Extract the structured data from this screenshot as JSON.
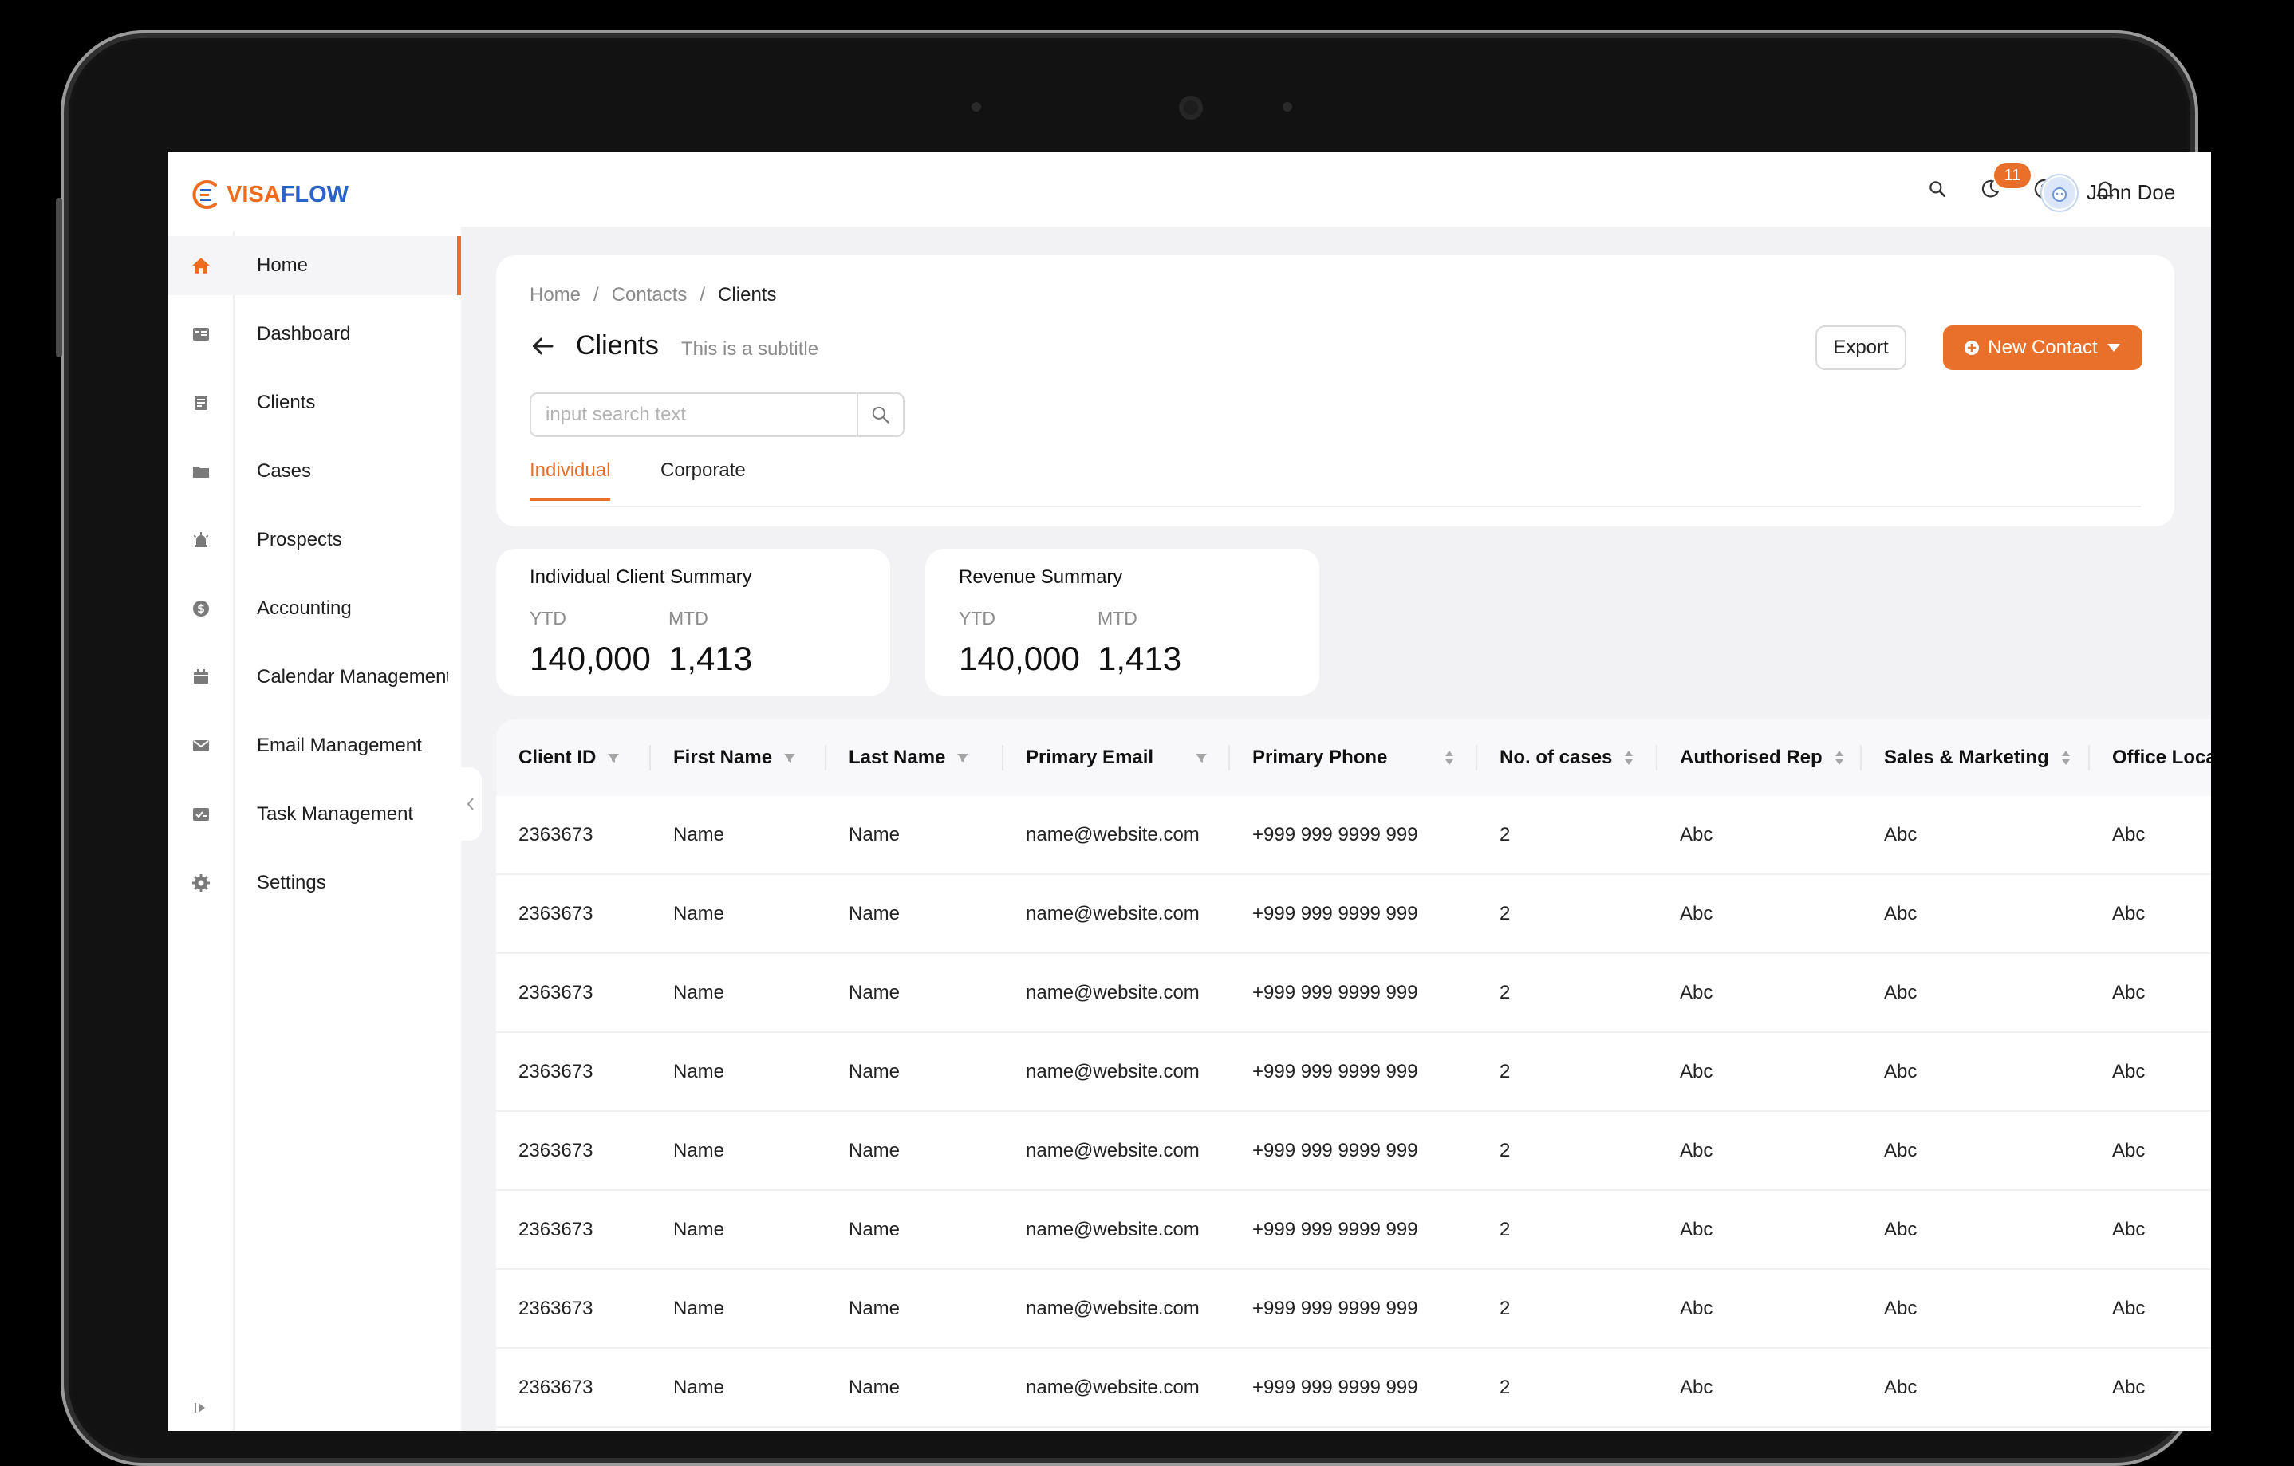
{
  "app": {
    "logo_visa": "VISA",
    "logo_flow": "FLOW",
    "brand_color": "#e8702a",
    "link_color": "#2a63c7"
  },
  "sidebar": {
    "items": [
      {
        "label": "Home",
        "icon": "home-icon",
        "active": true
      },
      {
        "label": "Dashboard",
        "icon": "dashboard-icon"
      },
      {
        "label": "Clients",
        "icon": "clients-icon"
      },
      {
        "label": "Cases",
        "icon": "folder-icon"
      },
      {
        "label": "Prospects",
        "icon": "alarm-icon"
      },
      {
        "label": "Accounting",
        "icon": "dollar-icon"
      },
      {
        "label": "Calendar Management",
        "icon": "calendar-icon"
      },
      {
        "label": "Email Management",
        "icon": "mail-icon"
      },
      {
        "label": "Task Management",
        "icon": "task-icon"
      },
      {
        "label": "Settings",
        "icon": "gear-icon"
      }
    ]
  },
  "topbar": {
    "notifications_count": "11",
    "user_name": "John Doe"
  },
  "breadcrumb": [
    "Home",
    "Contacts",
    "Clients"
  ],
  "page": {
    "title": "Clients",
    "subtitle": "This is a subtitle",
    "export_label": "Export",
    "new_contact_label": "New Contact",
    "search_placeholder": "input search text"
  },
  "tabs": [
    "Individual",
    "Corporate"
  ],
  "summaries": [
    {
      "title": "Individual Client Summary",
      "ytd_label": "YTD",
      "mtd_label": "MTD",
      "ytd": "140,000",
      "mtd": "1,413"
    },
    {
      "title": "Revenue Summary",
      "ytd_label": "YTD",
      "mtd_label": "MTD",
      "ytd": "140,000",
      "mtd": "1,413"
    }
  ],
  "table": {
    "columns": [
      "Client ID",
      "First Name",
      "Last Name",
      "Primary Email",
      "Primary Phone",
      "No. of cases",
      "Authorised Rep",
      "Sales & Marketing",
      "Office Loca"
    ],
    "rows": [
      [
        "2363673",
        "Name",
        "Name",
        "name@website.com",
        "+999 999 9999 999",
        "2",
        "Abc",
        "Abc",
        "Abc"
      ],
      [
        "2363673",
        "Name",
        "Name",
        "name@website.com",
        "+999 999 9999 999",
        "2",
        "Abc",
        "Abc",
        "Abc"
      ],
      [
        "2363673",
        "Name",
        "Name",
        "name@website.com",
        "+999 999 9999 999",
        "2",
        "Abc",
        "Abc",
        "Abc"
      ],
      [
        "2363673",
        "Name",
        "Name",
        "name@website.com",
        "+999 999 9999 999",
        "2",
        "Abc",
        "Abc",
        "Abc"
      ],
      [
        "2363673",
        "Name",
        "Name",
        "name@website.com",
        "+999 999 9999 999",
        "2",
        "Abc",
        "Abc",
        "Abc"
      ],
      [
        "2363673",
        "Name",
        "Name",
        "name@website.com",
        "+999 999 9999 999",
        "2",
        "Abc",
        "Abc",
        "Abc"
      ],
      [
        "2363673",
        "Name",
        "Name",
        "name@website.com",
        "+999 999 9999 999",
        "2",
        "Abc",
        "Abc",
        "Abc"
      ],
      [
        "2363673",
        "Name",
        "Name",
        "name@website.com",
        "+999 999 9999 999",
        "2",
        "Abc",
        "Abc",
        "Abc"
      ]
    ]
  }
}
